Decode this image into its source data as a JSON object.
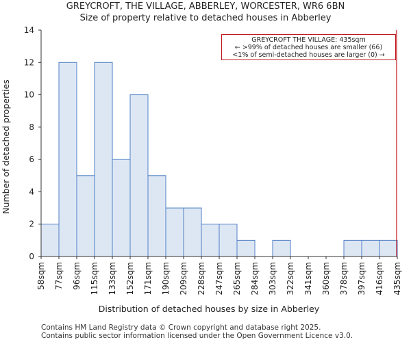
{
  "header": {
    "title": "GREYCROFT, THE VILLAGE, ABBERLEY, WORCESTER, WR6 6BN",
    "subtitle": "Size of property relative to detached houses in Abberley"
  },
  "footer": {
    "line1": "Contains HM Land Registry data © Crown copyright and database right 2025.",
    "line2": "Contains public sector information licensed under the Open Government Licence v3.0."
  },
  "annotation": {
    "line1": "GREYCROFT THE VILLAGE: 435sqm",
    "line2": "← >99% of detached houses are smaller (66)",
    "line3": "<1% of semi-detached houses are larger (0) →"
  },
  "colors": {
    "bar_fill": "#dde7f4",
    "bar_stroke": "#4f7fc4",
    "marker": "#c0161c"
  },
  "chart_data": {
    "type": "bar",
    "xlabel": "Distribution of detached houses by size in Abberley",
    "ylabel": "Number of detached properties",
    "ylim": [
      0,
      14
    ],
    "yticks": [
      0,
      2,
      4,
      6,
      8,
      10,
      12,
      14
    ],
    "bin_edges": [
      "58sqm",
      "77sqm",
      "96sqm",
      "115sqm",
      "133sqm",
      "152sqm",
      "171sqm",
      "190sqm",
      "209sqm",
      "228sqm",
      "247sqm",
      "265sqm",
      "284sqm",
      "303sqm",
      "322sqm",
      "341sqm",
      "360sqm",
      "378sqm",
      "397sqm",
      "416sqm",
      "435sqm"
    ],
    "values": [
      2,
      12,
      5,
      12,
      6,
      10,
      5,
      3,
      3,
      2,
      2,
      1,
      0,
      1,
      0,
      0,
      0,
      1,
      1,
      1
    ],
    "marker_value": "435sqm",
    "grid": false
  }
}
